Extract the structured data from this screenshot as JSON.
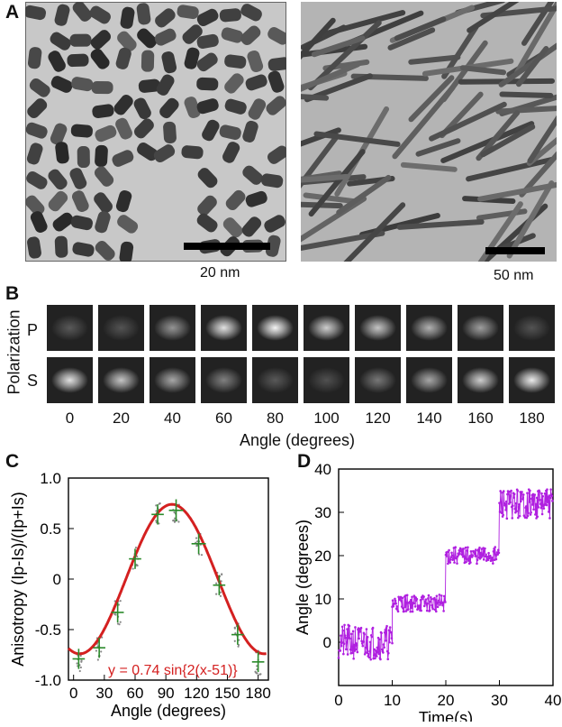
{
  "panels": {
    "A": {
      "letter": "A",
      "left_scale_bar": "20 nm",
      "right_scale_bar": "50 nm"
    },
    "B": {
      "letter": "B",
      "row_axis_label": "Polarization",
      "rows": [
        "P",
        "S"
      ],
      "angles": [
        "0",
        "20",
        "40",
        "60",
        "80",
        "100",
        "120",
        "140",
        "160",
        "180"
      ],
      "xlabel": "Angle (degrees)",
      "p_intensity": [
        0.15,
        0.12,
        0.45,
        0.85,
        0.95,
        0.75,
        0.7,
        0.6,
        0.5,
        0.12
      ],
      "s_intensity": [
        0.85,
        0.7,
        0.55,
        0.35,
        0.15,
        0.1,
        0.3,
        0.55,
        0.75,
        0.9
      ]
    },
    "C": {
      "letter": "C"
    },
    "D": {
      "letter": "D"
    }
  },
  "chart_data": [
    {
      "panel": "C",
      "type": "scatter",
      "xlabel": "Angle (degrees)",
      "ylabel": "Anisotropy (Ip-Is)/(Ip+Is)",
      "xlim": [
        -5,
        190
      ],
      "ylim": [
        -1.0,
        1.0
      ],
      "xticks": [
        0,
        30,
        60,
        90,
        120,
        150,
        180
      ],
      "yticks": [
        -1.0,
        -0.5,
        0,
        0.5,
        1.0
      ],
      "ytick_labels": [
        "-1.0",
        "-0.5",
        "0",
        "0.5",
        "1.0"
      ],
      "annotation": "y = 0.74 sin{2(x-51)}",
      "fit": {
        "amplitude": 0.74,
        "phase": 51,
        "color": "#d42020"
      },
      "points": [
        {
          "x": 5,
          "y": -0.79,
          "xerr": 6,
          "yerr": 0.1
        },
        {
          "x": 25,
          "y": -0.68,
          "xerr": 6,
          "yerr": 0.1
        },
        {
          "x": 43,
          "y": -0.33,
          "xerr": 6,
          "yerr": 0.1
        },
        {
          "x": 60,
          "y": 0.2,
          "xerr": 6,
          "yerr": 0.1
        },
        {
          "x": 82,
          "y": 0.64,
          "xerr": 6,
          "yerr": 0.1
        },
        {
          "x": 100,
          "y": 0.68,
          "xerr": 7,
          "yerr": 0.11
        },
        {
          "x": 122,
          "y": 0.35,
          "xerr": 7,
          "yerr": 0.1
        },
        {
          "x": 142,
          "y": -0.06,
          "xerr": 6,
          "yerr": 0.1
        },
        {
          "x": 160,
          "y": -0.55,
          "xerr": 6,
          "yerr": 0.1
        },
        {
          "x": 180,
          "y": -0.82,
          "xerr": 6,
          "yerr": 0.1
        }
      ],
      "point_color": "#2a8a2a",
      "raw_color": "#888888"
    },
    {
      "panel": "D",
      "type": "line",
      "xlabel": "Time(s)",
      "ylabel": "Angle (degrees)",
      "xlim": [
        0,
        40
      ],
      "ylim": [
        -10,
        40
      ],
      "xticks": [
        0,
        10,
        20,
        30,
        40
      ],
      "yticks": [
        0,
        10,
        20,
        30,
        40
      ],
      "color": "#b020e0",
      "steps": [
        {
          "t0": 0,
          "t1": 10,
          "level": 0,
          "noise": 4
        },
        {
          "t0": 10,
          "t1": 20,
          "level": 9,
          "noise": 2
        },
        {
          "t0": 20,
          "t1": 30,
          "level": 20,
          "noise": 2
        },
        {
          "t0": 30,
          "t1": 40,
          "level": 32,
          "noise": 3.5
        }
      ]
    }
  ]
}
